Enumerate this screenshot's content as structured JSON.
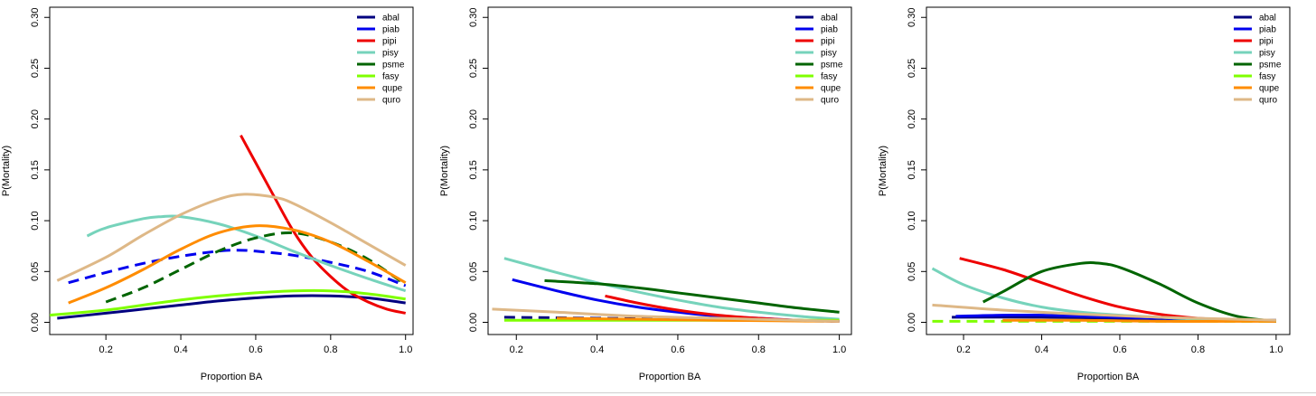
{
  "chart_data": [
    {
      "type": "line",
      "xlabel": "Proportion BA",
      "ylabel": "P(Mortality)",
      "xlim": [
        0.05,
        1.02
      ],
      "ylim": [
        -0.012,
        0.31
      ],
      "xticks": [
        "0.2",
        "0.4",
        "0.6",
        "0.8",
        "1.0"
      ],
      "yticks": [
        "0.00",
        "0.05",
        "0.10",
        "0.15",
        "0.20",
        "0.25",
        "0.30"
      ],
      "legend": {
        "placement": "top-right",
        "entries": [
          "abal",
          "piab",
          "pipi",
          "pisy",
          "psme",
          "fasy",
          "qupe",
          "quro"
        ]
      },
      "series": [
        {
          "name": "abal",
          "color": "#00007f",
          "dashed": false,
          "x": [
            0.07,
            0.2,
            0.3,
            0.4,
            0.5,
            0.6,
            0.7,
            0.8,
            0.9,
            1.0
          ],
          "y": [
            0.004,
            0.009,
            0.013,
            0.017,
            0.021,
            0.024,
            0.026,
            0.026,
            0.024,
            0.019
          ]
        },
        {
          "name": "piab",
          "color": "#0000ee",
          "dashed": true,
          "x": [
            0.1,
            0.2,
            0.3,
            0.4,
            0.5,
            0.55,
            0.6,
            0.7,
            0.8,
            0.9,
            1.0
          ],
          "y": [
            0.039,
            0.049,
            0.058,
            0.065,
            0.07,
            0.071,
            0.07,
            0.066,
            0.059,
            0.05,
            0.036
          ]
        },
        {
          "name": "pipi",
          "color": "#ee0000",
          "dashed": false,
          "x": [
            0.56,
            0.6,
            0.65,
            0.7,
            0.75,
            0.8,
            0.85,
            0.9,
            0.95,
            1.0
          ],
          "y": [
            0.184,
            0.157,
            0.123,
            0.09,
            0.064,
            0.045,
            0.03,
            0.02,
            0.013,
            0.009
          ]
        },
        {
          "name": "pisy",
          "color": "#76d3bb",
          "dashed": false,
          "x": [
            0.15,
            0.2,
            0.3,
            0.35,
            0.4,
            0.5,
            0.6,
            0.7,
            0.8,
            0.9,
            1.0
          ],
          "y": [
            0.085,
            0.093,
            0.102,
            0.104,
            0.104,
            0.097,
            0.085,
            0.07,
            0.056,
            0.043,
            0.031
          ]
        },
        {
          "name": "psme",
          "color": "#006400",
          "dashed": true,
          "x": [
            0.2,
            0.3,
            0.4,
            0.5,
            0.6,
            0.7,
            0.8,
            0.9,
            1.0
          ],
          "y": [
            0.02,
            0.034,
            0.052,
            0.07,
            0.083,
            0.088,
            0.079,
            0.062,
            0.037
          ]
        },
        {
          "name": "fasy",
          "color": "#7fff00",
          "dashed": false,
          "x": [
            0.05,
            0.2,
            0.3,
            0.4,
            0.5,
            0.6,
            0.7,
            0.8,
            0.9,
            1.0
          ],
          "y": [
            0.007,
            0.012,
            0.017,
            0.022,
            0.026,
            0.029,
            0.031,
            0.031,
            0.028,
            0.023
          ]
        },
        {
          "name": "qupe",
          "color": "#ff8c00",
          "dashed": false,
          "x": [
            0.1,
            0.2,
            0.3,
            0.4,
            0.5,
            0.6,
            0.7,
            0.8,
            0.9,
            1.0
          ],
          "y": [
            0.019,
            0.034,
            0.052,
            0.072,
            0.088,
            0.095,
            0.091,
            0.079,
            0.06,
            0.039
          ]
        },
        {
          "name": "quro",
          "color": "#deb887",
          "dashed": false,
          "x": [
            0.07,
            0.2,
            0.3,
            0.4,
            0.5,
            0.57,
            0.65,
            0.7,
            0.8,
            0.9,
            1.0
          ],
          "y": [
            0.041,
            0.064,
            0.086,
            0.106,
            0.121,
            0.126,
            0.123,
            0.117,
            0.098,
            0.077,
            0.056
          ]
        }
      ]
    },
    {
      "type": "line",
      "xlabel": "Proportion BA",
      "ylabel": "P(Mortality)",
      "xlim": [
        0.13,
        1.03
      ],
      "ylim": [
        -0.012,
        0.31
      ],
      "xticks": [
        "0.2",
        "0.4",
        "0.6",
        "0.8",
        "1.0"
      ],
      "yticks": [
        "0.00",
        "0.05",
        "0.10",
        "0.15",
        "0.20",
        "0.25",
        "0.30"
      ],
      "legend": {
        "placement": "top-right",
        "entries": [
          "abal",
          "piab",
          "pipi",
          "pisy",
          "psme",
          "fasy",
          "qupe",
          "quro"
        ]
      },
      "series": [
        {
          "name": "abal",
          "color": "#00007f",
          "dashed": true,
          "x": [
            0.17,
            0.4,
            0.6,
            0.8,
            1.0
          ],
          "y": [
            0.005,
            0.004,
            0.003,
            0.002,
            0.001
          ]
        },
        {
          "name": "piab",
          "color": "#0000ee",
          "dashed": false,
          "x": [
            0.19,
            0.3,
            0.4,
            0.5,
            0.6,
            0.7,
            0.8,
            0.9,
            1.0
          ],
          "y": [
            0.042,
            0.031,
            0.022,
            0.015,
            0.01,
            0.006,
            0.004,
            0.002,
            0.001
          ]
        },
        {
          "name": "pipi",
          "color": "#ee0000",
          "dashed": false,
          "x": [
            0.42,
            0.5,
            0.6,
            0.7,
            0.8,
            0.9,
            1.0
          ],
          "y": [
            0.026,
            0.019,
            0.012,
            0.007,
            0.004,
            0.002,
            0.001
          ]
        },
        {
          "name": "pisy",
          "color": "#76d3bb",
          "dashed": false,
          "x": [
            0.17,
            0.3,
            0.4,
            0.5,
            0.6,
            0.7,
            0.8,
            0.9,
            1.0
          ],
          "y": [
            0.063,
            0.049,
            0.039,
            0.03,
            0.022,
            0.015,
            0.01,
            0.006,
            0.003
          ]
        },
        {
          "name": "psme",
          "color": "#006400",
          "dashed": false,
          "x": [
            0.27,
            0.4,
            0.5,
            0.6,
            0.7,
            0.8,
            0.9,
            1.0
          ],
          "y": [
            0.041,
            0.038,
            0.034,
            0.029,
            0.024,
            0.019,
            0.014,
            0.01
          ]
        },
        {
          "name": "fasy",
          "color": "#7fff00",
          "dashed": false,
          "x": [
            0.17,
            0.4,
            0.6,
            0.8,
            1.0
          ],
          "y": [
            0.002,
            0.002,
            0.002,
            0.002,
            0.002
          ]
        },
        {
          "name": "qupe",
          "color": "#ff8c00",
          "dashed": false,
          "x": [
            0.3,
            0.5,
            0.7,
            1.0
          ],
          "y": [
            0.004,
            0.003,
            0.002,
            0.001
          ]
        },
        {
          "name": "quro",
          "color": "#deb887",
          "dashed": false,
          "x": [
            0.14,
            0.3,
            0.5,
            0.7,
            0.9,
            1.0
          ],
          "y": [
            0.013,
            0.01,
            0.006,
            0.004,
            0.002,
            0.001
          ]
        }
      ]
    },
    {
      "type": "line",
      "xlabel": "Proportion BA",
      "ylabel": "P(Mortality)",
      "xlim": [
        0.105,
        1.035
      ],
      "ylim": [
        -0.012,
        0.31
      ],
      "xticks": [
        "0.2",
        "0.4",
        "0.6",
        "0.8",
        "1.0"
      ],
      "yticks": [
        "0.00",
        "0.05",
        "0.10",
        "0.15",
        "0.20",
        "0.25",
        "0.30"
      ],
      "legend": {
        "placement": "top-right",
        "entries": [
          "abal",
          "piab",
          "pipi",
          "pisy",
          "psme",
          "fasy",
          "qupe",
          "quro"
        ]
      },
      "series": [
        {
          "name": "abal",
          "color": "#00007f",
          "dashed": false,
          "x": [
            0.17,
            0.4,
            0.6,
            0.8,
            1.0
          ],
          "y": [
            0.005,
            0.005,
            0.004,
            0.003,
            0.002
          ]
        },
        {
          "name": "piab",
          "color": "#0000ee",
          "dashed": false,
          "x": [
            0.18,
            0.3,
            0.4,
            0.5,
            0.6,
            0.8,
            1.0
          ],
          "y": [
            0.006,
            0.007,
            0.007,
            0.006,
            0.005,
            0.003,
            0.001
          ]
        },
        {
          "name": "pipi",
          "color": "#ee0000",
          "dashed": false,
          "x": [
            0.19,
            0.3,
            0.4,
            0.5,
            0.6,
            0.7,
            0.8,
            0.9,
            1.0
          ],
          "y": [
            0.063,
            0.052,
            0.039,
            0.026,
            0.015,
            0.008,
            0.004,
            0.002,
            0.001
          ]
        },
        {
          "name": "pisy",
          "color": "#76d3bb",
          "dashed": false,
          "x": [
            0.12,
            0.2,
            0.3,
            0.4,
            0.5,
            0.6,
            0.7,
            0.8,
            0.9,
            1.0
          ],
          "y": [
            0.053,
            0.037,
            0.024,
            0.015,
            0.01,
            0.007,
            0.005,
            0.003,
            0.002,
            0.001
          ]
        },
        {
          "name": "psme",
          "color": "#006400",
          "dashed": false,
          "x": [
            0.25,
            0.3,
            0.4,
            0.5,
            0.55,
            0.6,
            0.7,
            0.8,
            0.9,
            1.0
          ],
          "y": [
            0.02,
            0.03,
            0.05,
            0.058,
            0.058,
            0.054,
            0.038,
            0.019,
            0.006,
            0.001
          ]
        },
        {
          "name": "fasy",
          "color": "#7fff00",
          "dashed": true,
          "x": [
            0.12,
            0.4,
            0.6,
            0.8,
            1.0
          ],
          "y": [
            0.001,
            0.001,
            0.001,
            0.001,
            0.001
          ]
        },
        {
          "name": "qupe",
          "color": "#ff8c00",
          "dashed": false,
          "x": [
            0.3,
            0.5,
            0.7,
            0.9,
            1.0
          ],
          "y": [
            0.002,
            0.002,
            0.001,
            0.001,
            0.001
          ]
        },
        {
          "name": "quro",
          "color": "#deb887",
          "dashed": false,
          "x": [
            0.12,
            0.3,
            0.5,
            0.7,
            0.9,
            1.0
          ],
          "y": [
            0.017,
            0.012,
            0.008,
            0.005,
            0.003,
            0.002
          ]
        }
      ]
    }
  ]
}
